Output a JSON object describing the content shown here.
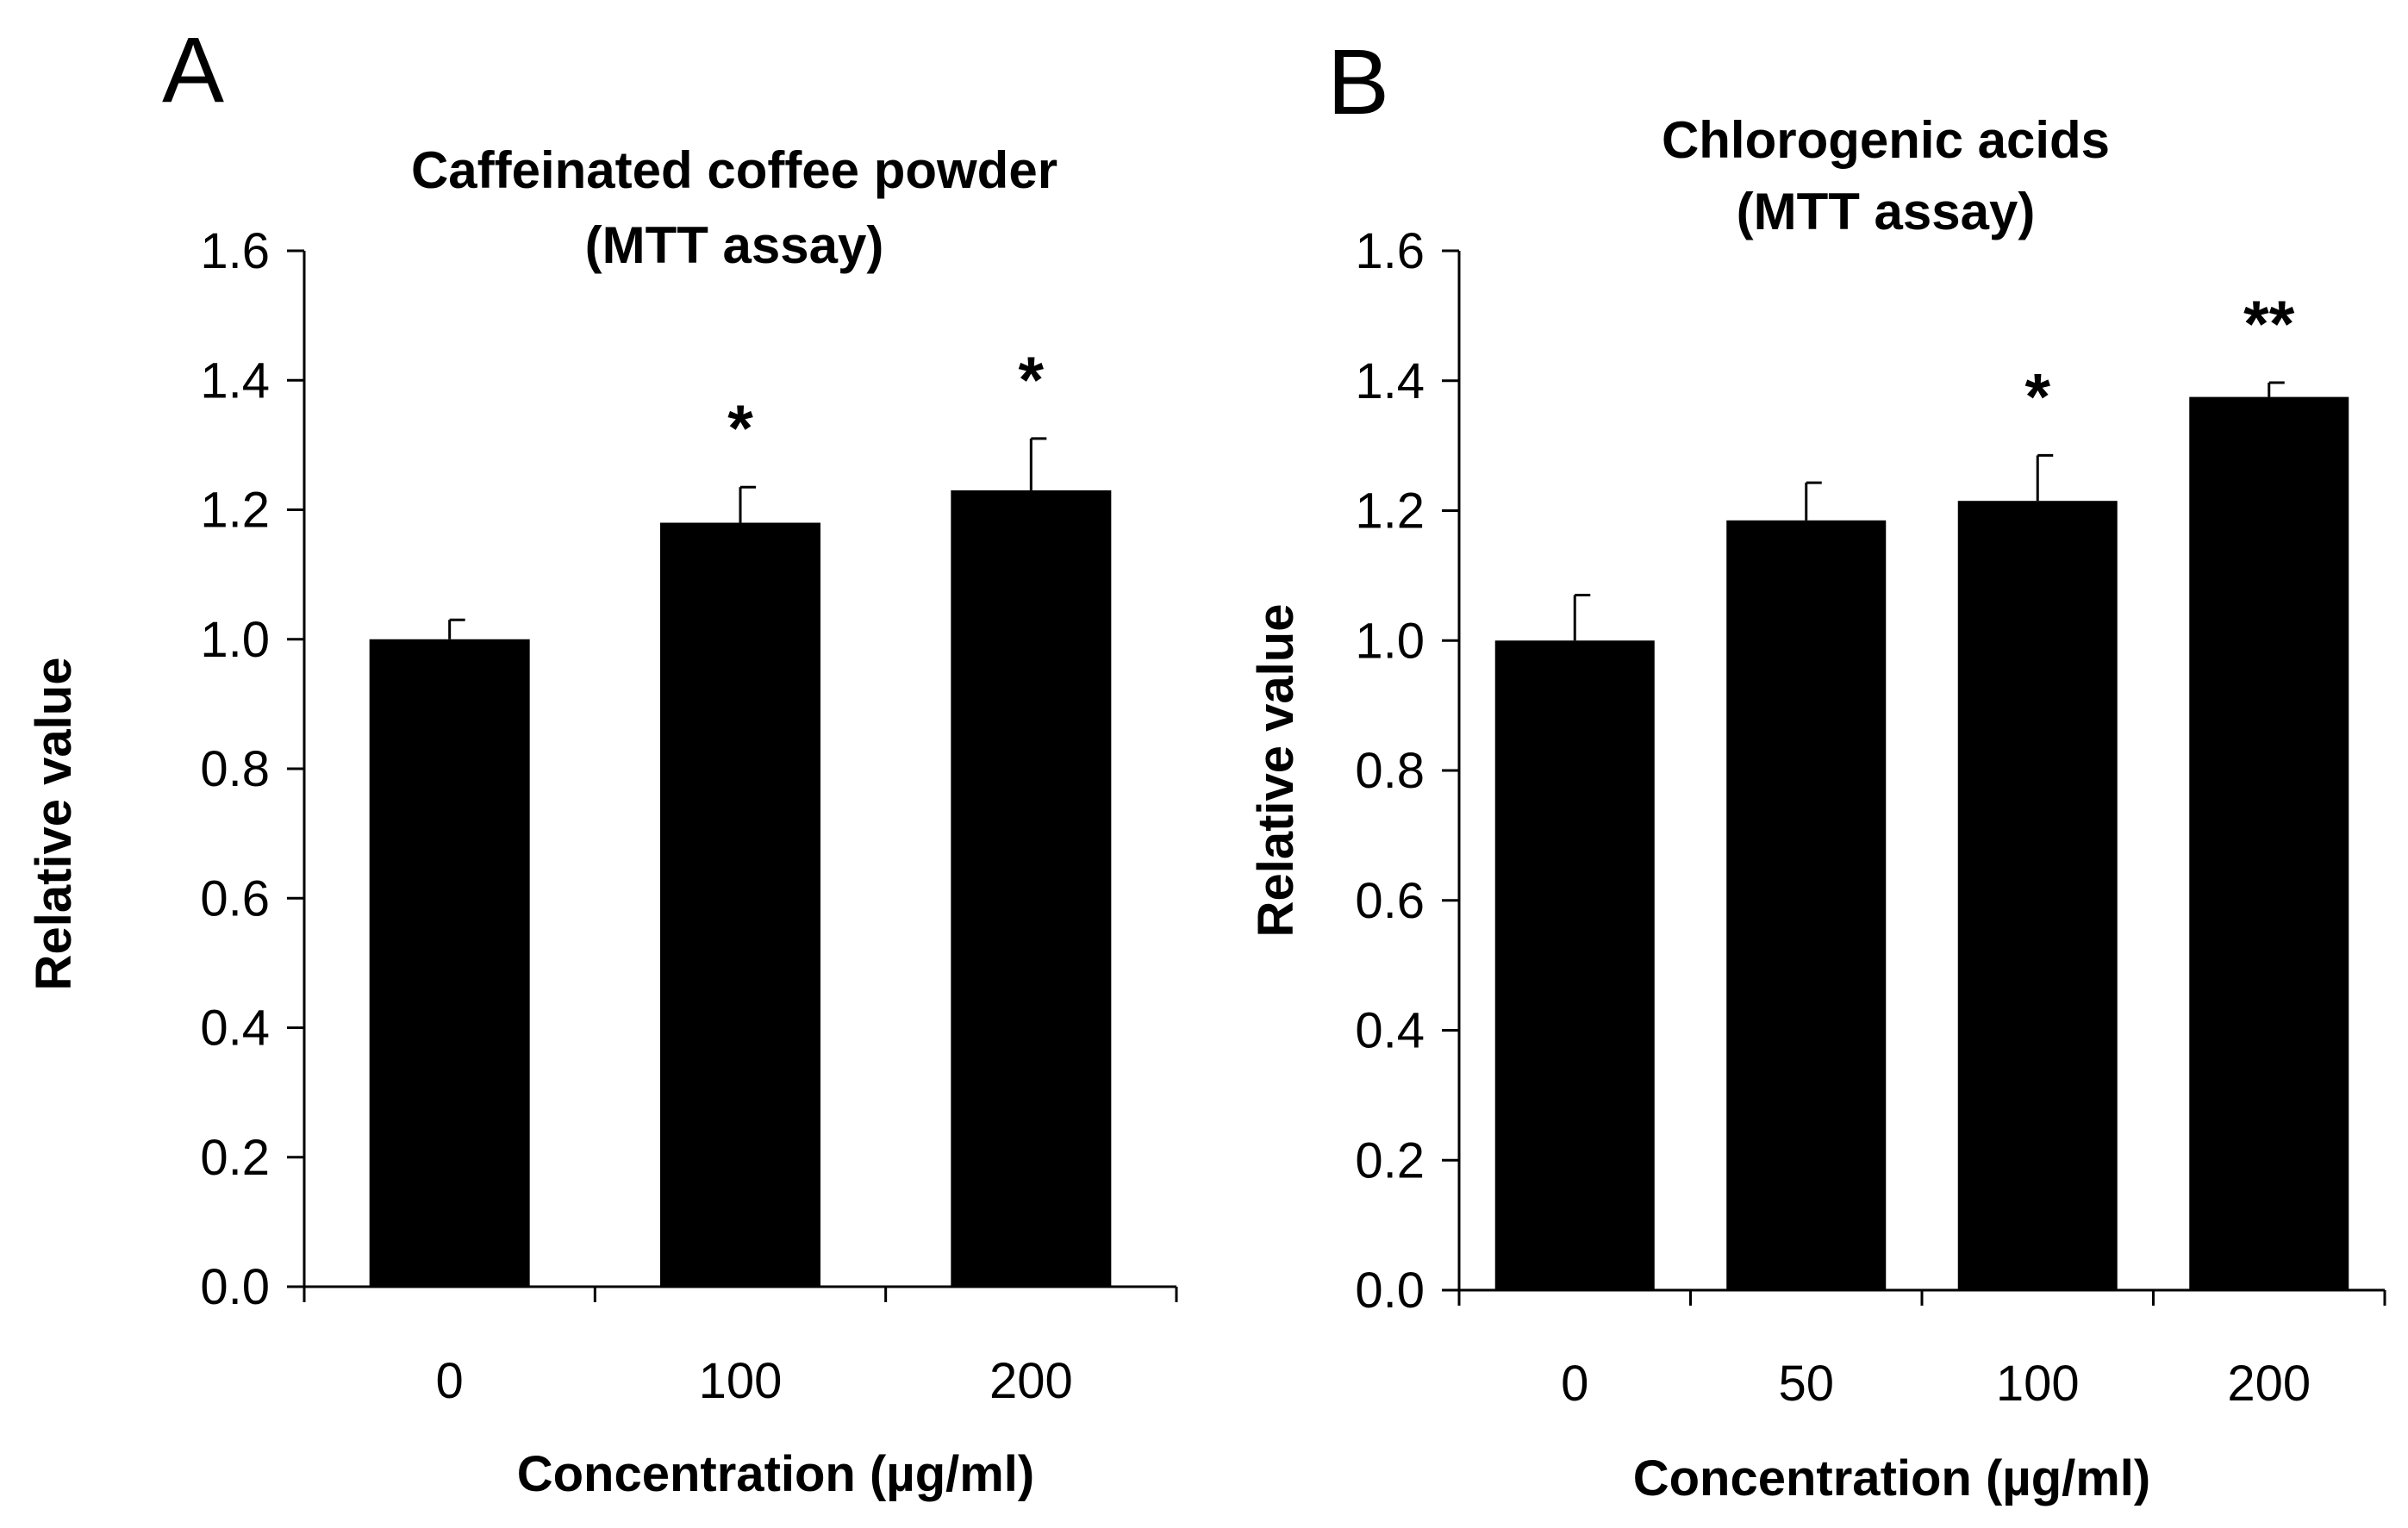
{
  "chart_data": [
    {
      "panel": "A",
      "type": "bar",
      "title": [
        "Caffeinated coffee powder",
        "(MTT assay)"
      ],
      "categories": [
        "0",
        "100",
        "200"
      ],
      "values": [
        1.0,
        1.18,
        1.23
      ],
      "errors": [
        0.03,
        0.055,
        0.08
      ],
      "significance": [
        "",
        "*",
        "*"
      ],
      "xlabel": "Concentration (µg/ml)",
      "ylabel": "Relative value",
      "ylim": [
        0,
        1.6
      ],
      "yticks": [
        "0.0",
        "0.2",
        "0.4",
        "0.6",
        "0.8",
        "1.0",
        "1.2",
        "1.4",
        "1.6"
      ],
      "bar_color": "#000000",
      "grid": false
    },
    {
      "panel": "B",
      "type": "bar",
      "title": [
        "Chlorogenic acids",
        "(MTT assay)"
      ],
      "categories": [
        "0",
        "50",
        "100",
        "200"
      ],
      "values": [
        1.0,
        1.185,
        1.215,
        1.375
      ],
      "errors": [
        0.07,
        0.058,
        0.07,
        0.022
      ],
      "significance": [
        "",
        "",
        "*",
        "**"
      ],
      "xlabel": "Concentration (µg/ml)",
      "ylabel": "Relative value",
      "ylim": [
        0,
        1.6
      ],
      "yticks": [
        "0.0",
        "0.2",
        "0.4",
        "0.6",
        "0.8",
        "1.0",
        "1.2",
        "1.4",
        "1.6"
      ],
      "bar_color": "#000000",
      "grid": false
    }
  ]
}
